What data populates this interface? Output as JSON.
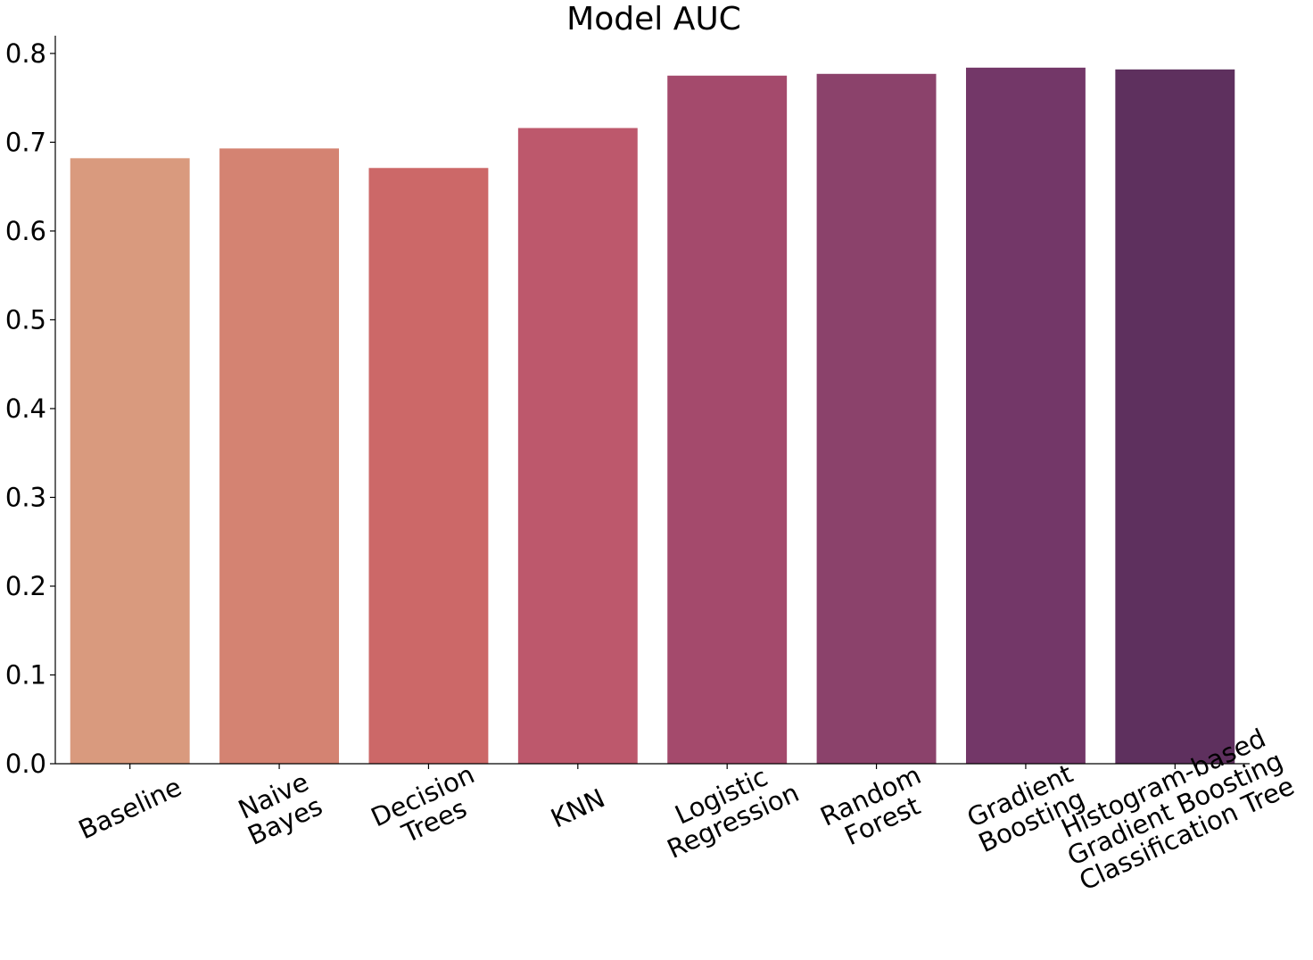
{
  "chart_data": {
    "type": "bar",
    "title": "Model AUC",
    "xlabel": "",
    "ylabel": "",
    "ylim": [
      0.0,
      0.82
    ],
    "yticks": [
      0.0,
      0.1,
      0.2,
      0.3,
      0.4,
      0.5,
      0.6,
      0.7,
      0.8
    ],
    "ytick_labels": [
      "0.0",
      "0.1",
      "0.2",
      "0.3",
      "0.4",
      "0.5",
      "0.6",
      "0.7",
      "0.8"
    ],
    "grid": false,
    "categories": [
      [
        "Baseline"
      ],
      [
        "Naive",
        "Bayes"
      ],
      [
        "Decision",
        "Trees"
      ],
      [
        "KNN"
      ],
      [
        "Logistic",
        "Regression"
      ],
      [
        "Random",
        "Forest"
      ],
      [
        "Gradient",
        "Boosting"
      ],
      [
        "Histogram-based",
        "Gradient Boosting",
        "Classification Tree"
      ]
    ],
    "values": [
      0.682,
      0.693,
      0.671,
      0.716,
      0.775,
      0.777,
      0.784,
      0.782
    ],
    "colors": [
      "#d99a7e",
      "#d48372",
      "#cc6868",
      "#bd586c",
      "#a44a6c",
      "#8b426b",
      "#733768",
      "#5e305e"
    ],
    "x_label_rotation_deg": -25
  }
}
